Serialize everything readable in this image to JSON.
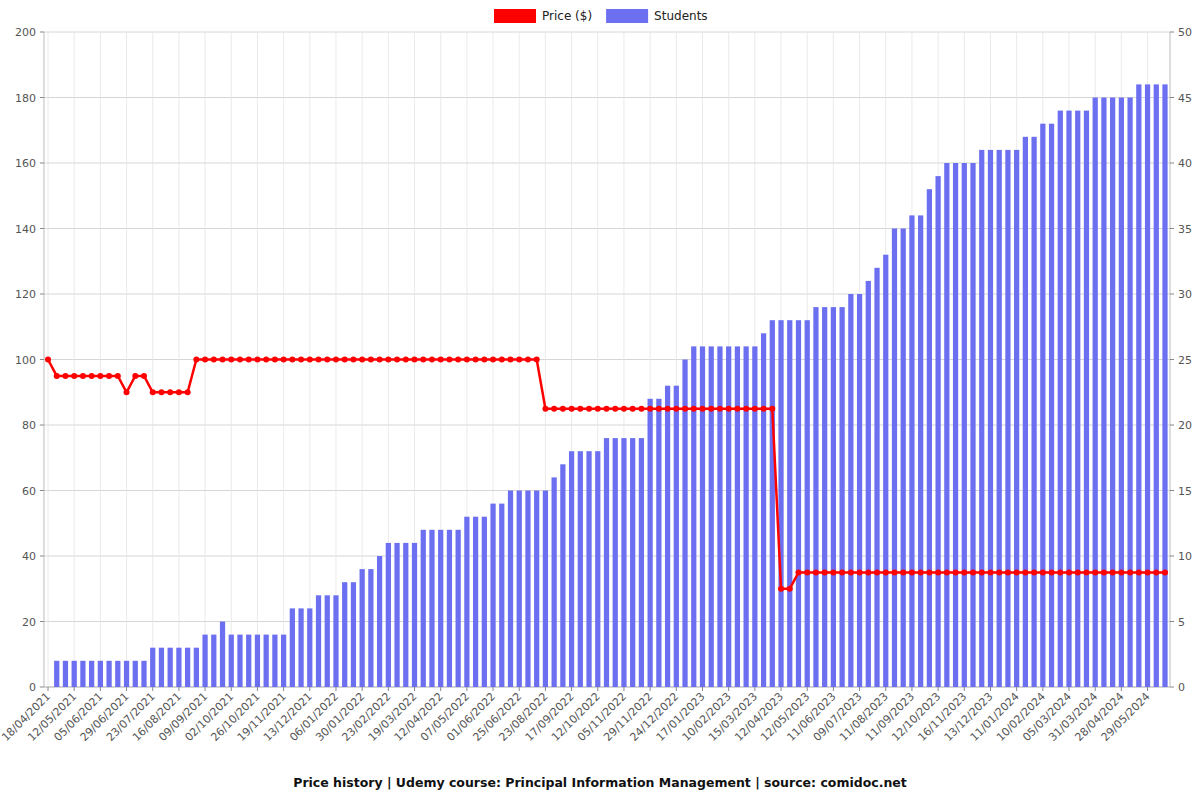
{
  "chart_data": {
    "type": "bar",
    "title": "Price history | Udemy course: Principal Information Management | source: comidoc.net",
    "categories": [
      "18/04/2021",
      null,
      null,
      "12/05/2021",
      null,
      null,
      "05/06/2021",
      null,
      null,
      "29/06/2021",
      null,
      null,
      "23/07/2021",
      null,
      null,
      "16/08/2021",
      null,
      null,
      "09/09/2021",
      null,
      null,
      "02/10/2021",
      null,
      null,
      "26/10/2021",
      null,
      null,
      "19/11/2021",
      null,
      null,
      "13/12/2021",
      null,
      null,
      "06/01/2022",
      null,
      null,
      "30/01/2022",
      null,
      null,
      "23/02/2022",
      null,
      null,
      "19/03/2022",
      null,
      null,
      "12/04/2022",
      null,
      null,
      "07/05/2022",
      null,
      null,
      "01/06/2022",
      null,
      null,
      "25/06/2022",
      null,
      null,
      "23/08/2022",
      null,
      null,
      "17/09/2022",
      null,
      null,
      "12/10/2022",
      null,
      null,
      "05/11/2022",
      null,
      null,
      "29/11/2022",
      null,
      null,
      "24/12/2022",
      null,
      null,
      "17/01/2023",
      null,
      null,
      "10/02/2023",
      null,
      null,
      "15/03/2023",
      null,
      null,
      "12/04/2023",
      null,
      null,
      "12/05/2023",
      null,
      null,
      "11/06/2023",
      null,
      null,
      "09/07/2023",
      null,
      null,
      "11/08/2023",
      null,
      null,
      "11/09/2023",
      null,
      null,
      "12/10/2023",
      null,
      null,
      "16/11/2023",
      null,
      null,
      "13/12/2023",
      null,
      null,
      "11/01/2024",
      null,
      null,
      "10/02/2024",
      null,
      null,
      "05/03/2024",
      null,
      null,
      "31/03/2024",
      null,
      null,
      "28/04/2024",
      null,
      null,
      "29/05/2024",
      null,
      null
    ],
    "series": [
      {
        "name": "Price ($)",
        "type": "line",
        "color": "#ff0000",
        "marker": "circle",
        "axis": "y",
        "values": [
          100,
          95,
          95,
          95,
          95,
          95,
          95,
          95,
          95,
          90,
          95,
          95,
          90,
          90,
          90,
          90,
          90,
          100,
          100,
          100,
          100,
          100,
          100,
          100,
          100,
          100,
          100,
          100,
          100,
          100,
          100,
          100,
          100,
          100,
          100,
          100,
          100,
          100,
          100,
          100,
          100,
          100,
          100,
          100,
          100,
          100,
          100,
          100,
          100,
          100,
          100,
          100,
          100,
          100,
          100,
          100,
          100,
          85,
          85,
          85,
          85,
          85,
          85,
          85,
          85,
          85,
          85,
          85,
          85,
          85,
          85,
          85,
          85,
          85,
          85,
          85,
          85,
          85,
          85,
          85,
          85,
          85,
          85,
          85,
          30,
          30,
          35,
          35,
          35,
          35,
          35,
          35,
          35,
          35,
          35,
          35,
          35,
          35,
          35,
          35,
          35,
          35,
          35,
          35,
          35,
          35,
          35,
          35,
          35,
          35,
          35,
          35,
          35,
          35,
          35,
          35,
          35,
          35,
          35,
          35,
          35,
          35,
          35,
          35,
          35,
          35,
          35,
          35,
          35
        ]
      },
      {
        "name": "Students",
        "type": "bar",
        "color": "#6b6ff0",
        "axis": "y2",
        "values": [
          0,
          2,
          2,
          2,
          2,
          2,
          2,
          2,
          2,
          2,
          2,
          2,
          3,
          3,
          3,
          3,
          3,
          3,
          4,
          4,
          5,
          4,
          4,
          4,
          4,
          4,
          4,
          4,
          6,
          6,
          6,
          7,
          7,
          7,
          8,
          8,
          9,
          9,
          10,
          11,
          11,
          11,
          11,
          12,
          12,
          12,
          12,
          12,
          13,
          13,
          13,
          14,
          14,
          15,
          15,
          15,
          15,
          15,
          16,
          17,
          18,
          18,
          18,
          18,
          19,
          19,
          19,
          19,
          19,
          22,
          22,
          23,
          23,
          25,
          26,
          26,
          26,
          26,
          26,
          26,
          26,
          26,
          27,
          28,
          28,
          28,
          28,
          28,
          29,
          29,
          29,
          29,
          30,
          30,
          31,
          32,
          33,
          35,
          35,
          36,
          36,
          38,
          39,
          40,
          40,
          40,
          40,
          41,
          41,
          41,
          41,
          41,
          42,
          42,
          43,
          43,
          44,
          44,
          44,
          44,
          45,
          45,
          45,
          45,
          45,
          46,
          46,
          46,
          46
        ]
      }
    ],
    "ylim": [
      0,
      200
    ],
    "yticks": [
      0,
      20,
      40,
      60,
      80,
      100,
      120,
      140,
      160,
      180,
      200
    ],
    "y2lim": [
      0,
      50
    ],
    "y2ticks": [
      0,
      5,
      10,
      15,
      20,
      25,
      30,
      35,
      40,
      45,
      50
    ],
    "grid": true,
    "legend": "top"
  }
}
